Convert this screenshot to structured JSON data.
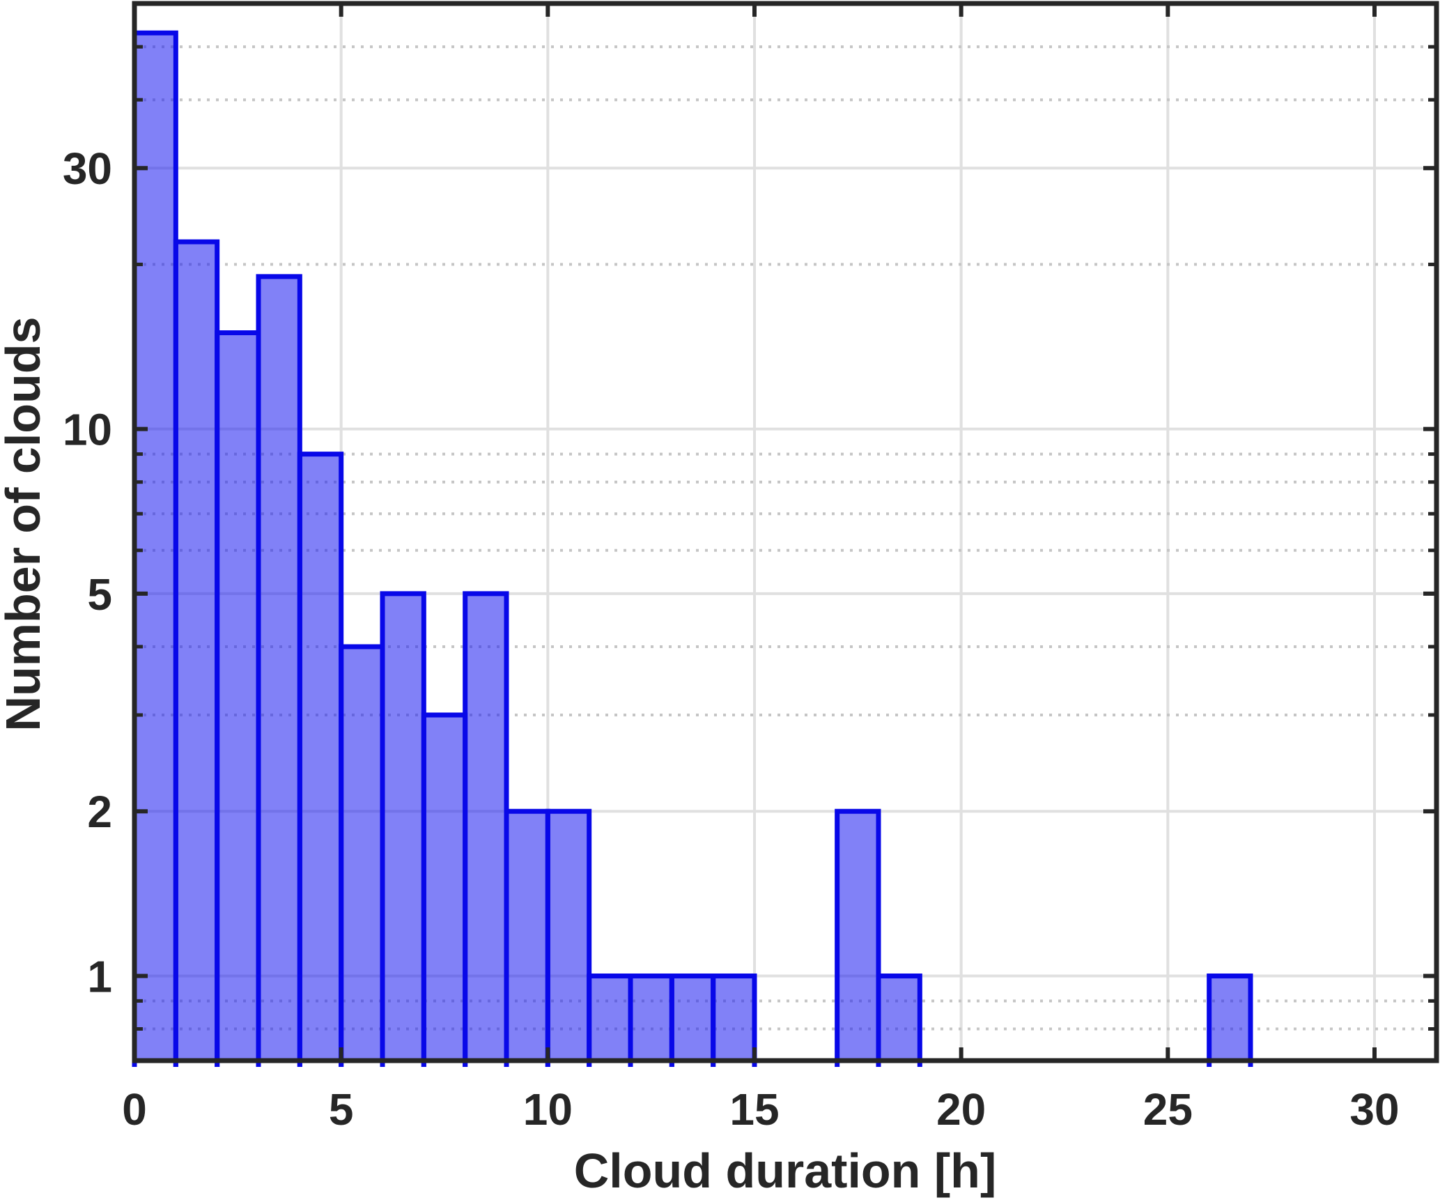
{
  "chart_data": {
    "type": "bar",
    "subtype": "histogram",
    "title": "",
    "xlabel": "Cloud duration [h]",
    "ylabel": "Number of clouds",
    "bin_width_hours": 1,
    "bin_edges": [
      0,
      1,
      2,
      3,
      4,
      5,
      6,
      7,
      8,
      9,
      10,
      11,
      12,
      13,
      14,
      15,
      16,
      17,
      18,
      19,
      20,
      21,
      22,
      23,
      24,
      25,
      26,
      27
    ],
    "counts": [
      53,
      22,
      15,
      19,
      9,
      4,
      5,
      3,
      5,
      2,
      2,
      1,
      1,
      1,
      1,
      0,
      0,
      2,
      1,
      0,
      0,
      0,
      0,
      0,
      0,
      0,
      1
    ],
    "xlim": [
      0,
      31.5
    ],
    "ylim": [
      0.7,
      60
    ],
    "yscale": "log",
    "x_ticks": [
      0,
      5,
      10,
      15,
      20,
      25,
      30
    ],
    "x_tick_labels": [
      "0",
      "5",
      "10",
      "15",
      "20",
      "25",
      "30"
    ],
    "y_ticks": [
      1,
      2,
      5,
      10,
      30
    ],
    "y_tick_labels": [
      "1",
      "2",
      "5",
      "10",
      "30"
    ],
    "y_minor_ticks": [
      0.8,
      0.9,
      3,
      4,
      6,
      7,
      8,
      9,
      20,
      40,
      50
    ],
    "grid": "on",
    "minor_grid": "on",
    "legend": "none",
    "colors": {
      "bar_fill": "rgba(25,25,240,0.55)",
      "bar_edge": "#0808e8",
      "grid_major": "#e0e0e0",
      "grid_minor": "#c5c5c5",
      "axis": "#262626",
      "text": "#262626",
      "background": "#ffffff"
    }
  }
}
